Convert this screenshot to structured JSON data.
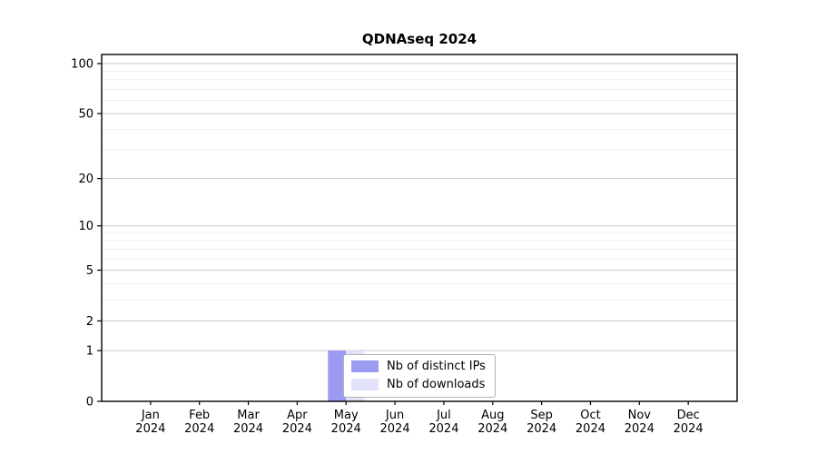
{
  "chart_data": {
    "type": "bar",
    "title": "QDNAseq 2024",
    "categories": [
      "Jan",
      "Feb",
      "Mar",
      "Apr",
      "May",
      "Jun",
      "Jul",
      "Aug",
      "Sep",
      "Oct",
      "Nov",
      "Dec"
    ],
    "year_label": "2024",
    "series": [
      {
        "name": "Nb of distinct IPs",
        "color": "#9b9bf2",
        "values": [
          0,
          0,
          0,
          0,
          1,
          0,
          0,
          0,
          0,
          0,
          0,
          0
        ]
      },
      {
        "name": "Nb of downloads",
        "color": "#e2e2fa",
        "values": [
          0,
          0,
          0,
          0,
          1,
          0,
          0,
          0,
          0,
          0,
          0,
          0
        ]
      }
    ],
    "y_ticks": [
      0,
      1,
      2,
      5,
      10,
      20,
      50,
      100
    ],
    "y_minor_gridlines": [
      1,
      2,
      3,
      4,
      5,
      6,
      7,
      8,
      9,
      10,
      20,
      30,
      40,
      50,
      60,
      70,
      80,
      90,
      100
    ],
    "y_scale": "log1p",
    "ylim": [
      0,
      113
    ],
    "xlabel": "",
    "ylabel": "",
    "grid": "horizontal",
    "legend_position": "bottom-center-inside",
    "colors": {
      "frame": "#000000",
      "grid_minor": "#ededed",
      "grid_major": "#c9c9c9",
      "legend_border": "#b3b3b3"
    }
  }
}
